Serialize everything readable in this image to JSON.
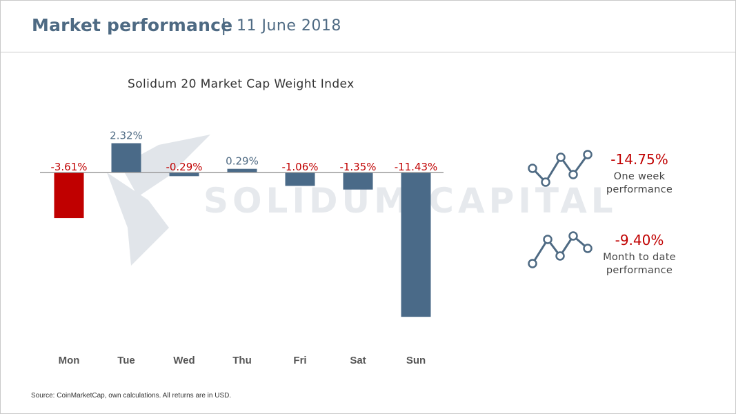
{
  "header": {
    "title": "Market performance",
    "separator": "|",
    "date": "11 June 2018"
  },
  "watermark": "SOLIDUM CAPITAL",
  "kpis": [
    {
      "value": "-14.75%",
      "label_line1": "One week",
      "label_line2": "performance"
    },
    {
      "value": "-9.40%",
      "label_line1": "Month to date",
      "label_line2": "performance"
    }
  ],
  "source": "Source: CoinMarketCap, own calculations. All returns are in USD.",
  "colors": {
    "title": "#4e6a83",
    "bar": "#4a6a88",
    "bar_highlight": "#c00000",
    "negative_label": "#c00000",
    "positive_label": "#4e6a83",
    "spark": "#4e6a83"
  },
  "icons": [
    "line-sparkline-icon",
    "line-sparkline-icon"
  ],
  "chart_data": {
    "type": "bar",
    "title": "Solidum 20 Market Cap Weight Index",
    "categories": [
      "Mon",
      "Tue",
      "Wed",
      "Thu",
      "Fri",
      "Sat",
      "Sun"
    ],
    "values": [
      -3.61,
      2.32,
      -0.29,
      0.29,
      -1.06,
      -1.35,
      -11.43
    ],
    "data_labels": [
      "-3.61%",
      "2.32%",
      "-0.29%",
      "0.29%",
      "-1.06%",
      "-1.35%",
      "-11.43%"
    ],
    "highlight_index": 0,
    "xlabel": "",
    "ylabel": "",
    "ylim": [
      -12.5,
      4
    ],
    "grid": false,
    "legend": "none"
  }
}
